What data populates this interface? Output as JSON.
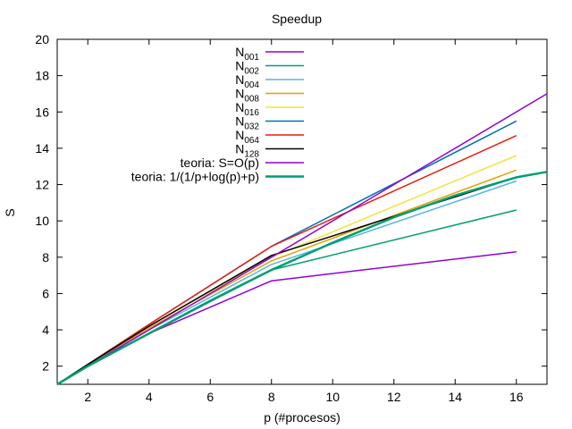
{
  "chart_data": {
    "type": "line",
    "title": "Speedup",
    "xlabel": "p (#procesos)",
    "ylabel": "S",
    "xlim": [
      1,
      17
    ],
    "ylim": [
      1,
      20
    ],
    "xticks": [
      2,
      4,
      6,
      8,
      10,
      12,
      14,
      16
    ],
    "yticks": [
      2,
      4,
      6,
      8,
      10,
      12,
      14,
      16,
      18,
      20
    ],
    "grid": false,
    "legend_position": "top-center",
    "series": [
      {
        "name": "N",
        "sub": "001",
        "color": "#9400d3",
        "x": [
          1,
          2,
          4,
          8,
          16
        ],
        "y": [
          1,
          2.0,
          3.8,
          6.7,
          8.3
        ]
      },
      {
        "name": "N",
        "sub": "002",
        "color": "#009e73",
        "x": [
          1,
          2,
          4,
          8,
          16
        ],
        "y": [
          1,
          2.0,
          3.8,
          7.3,
          10.6
        ]
      },
      {
        "name": "N",
        "sub": "004",
        "color": "#56b4e9",
        "x": [
          1,
          2,
          4,
          8,
          16
        ],
        "y": [
          1,
          2.1,
          4.0,
          7.6,
          12.2
        ]
      },
      {
        "name": "N",
        "sub": "008",
        "color": "#e69f00",
        "x": [
          1,
          2,
          4,
          8,
          16
        ],
        "y": [
          1,
          2.1,
          4.1,
          7.8,
          12.8
        ]
      },
      {
        "name": "N",
        "sub": "016",
        "color": "#f0e442",
        "x": [
          1,
          2,
          4,
          8,
          16
        ],
        "y": [
          1,
          2.1,
          4.2,
          8.0,
          13.6
        ]
      },
      {
        "name": "N",
        "sub": "032",
        "color": "#0072b2",
        "x": [
          1,
          2,
          4,
          8,
          16
        ],
        "y": [
          1,
          2.1,
          4.3,
          8.6,
          15.5
        ]
      },
      {
        "name": "N",
        "sub": "064",
        "color": "#e51e10",
        "x": [
          1,
          2,
          4,
          8,
          16
        ],
        "y": [
          1,
          2.1,
          4.3,
          8.6,
          14.7
        ]
      },
      {
        "name": "N",
        "sub": "128",
        "color": "#000000",
        "x": [
          1,
          2,
          4,
          8,
          16
        ],
        "y": [
          1,
          2.1,
          4.2,
          8.1,
          12.4
        ]
      },
      {
        "name": "teoria: S=O(p)",
        "color": "#9400d3",
        "x": [
          1,
          17
        ],
        "y": [
          1,
          17
        ]
      },
      {
        "name": "teoria: 1/(1/p+log(p)+p)",
        "color": "#009e73",
        "thick": true,
        "x": [
          1,
          2,
          4,
          6,
          8,
          10,
          12,
          14,
          16,
          17
        ],
        "y": [
          1,
          2.0,
          3.8,
          5.6,
          7.3,
          8.8,
          10.2,
          11.4,
          12.4,
          12.7
        ]
      }
    ]
  }
}
